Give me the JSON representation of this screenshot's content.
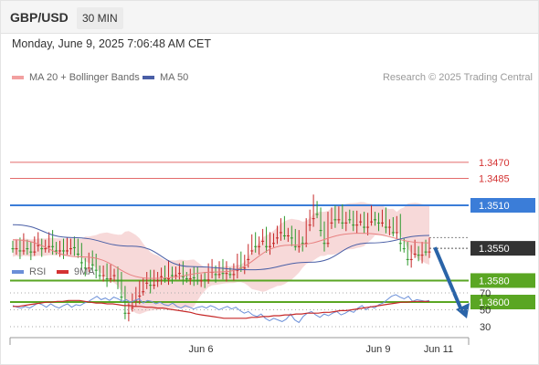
{
  "header": {
    "pair": "GBP/USD",
    "timeframe": "30 MIN"
  },
  "datetime": "Monday, June 9, 2025 7:06:48 AM CET",
  "legend": {
    "ma20_label": "MA 20 + Bollinger Bands",
    "ma50_label": "MA 50",
    "rsi_label": "RSI",
    "ma9_label": "9MA"
  },
  "credit": "Research © 2025 Trading Central",
  "colors": {
    "resistance": "#5aa623",
    "support": "#3b7dd8",
    "extra_support": "#e36a6a",
    "bull": "#2e9a2e",
    "bear": "#c62828",
    "ma20": "#e88080",
    "ma50": "#4a5fa6",
    "bands": "#f6d2d2",
    "arrow": "#2a64a8",
    "rsi": "#6b8fd8",
    "rsi_ma": "#c62828"
  },
  "chart_data": [
    {
      "type": "candlestick",
      "title": "GBP/USD 30 MIN",
      "x_ticks": [
        "Jun 6",
        "Jun 9",
        "Jun 11"
      ],
      "ylim": [
        1.344,
        1.363
      ],
      "current_price": 1.355,
      "levels": [
        {
          "label": "1.3600",
          "value": 1.36,
          "kind": "resistance"
        },
        {
          "label": "1.3580",
          "value": 1.358,
          "kind": "resistance"
        },
        {
          "label": "1.3510",
          "value": 1.351,
          "kind": "support"
        },
        {
          "label": "1.3485",
          "value": 1.3485,
          "kind": "extra_support"
        },
        {
          "label": "1.3470",
          "value": 1.347,
          "kind": "extra_support"
        }
      ],
      "price_label": "1.3550",
      "projection": {
        "from": 1.355,
        "to": 1.36
      },
      "series": [
        {
          "name": "close",
          "values": [
            1.355,
            1.3548,
            1.3552,
            1.3546,
            1.355,
            1.3553,
            1.3547,
            1.3545,
            1.355,
            1.3548,
            1.3543,
            1.3548,
            1.3552,
            1.3549,
            1.3552,
            1.355,
            1.3545,
            1.3549,
            1.3555,
            1.3563,
            1.3568,
            1.356,
            1.3565,
            1.357,
            1.3575,
            1.3572,
            1.3578,
            1.3575,
            1.3573,
            1.358,
            1.3595,
            1.361,
            1.3605,
            1.3598,
            1.3594,
            1.359,
            1.3582,
            1.3578,
            1.3584,
            1.358,
            1.3576,
            1.3574,
            1.3578,
            1.3571,
            1.3575,
            1.3573,
            1.3572,
            1.3576,
            1.3578,
            1.3575,
            1.3577,
            1.358,
            1.3578,
            1.3579,
            1.3572,
            1.357,
            1.3574,
            1.3568,
            1.3573,
            1.3572,
            1.3574,
            1.357,
            1.3563,
            1.3568,
            1.356,
            1.3552,
            1.3545,
            1.3548,
            1.3543,
            1.3538,
            1.3548,
            1.3545,
            1.354,
            1.3535,
            1.353,
            1.3538,
            1.3535,
            1.354,
            1.3548,
            1.3543,
            1.3545,
            1.3528,
            1.3522,
            1.351,
            1.3518,
            1.3533,
            1.3545,
            1.3526,
            1.3516,
            1.3523,
            1.3519,
            1.3526,
            1.352,
            1.3523,
            1.3528,
            1.3525,
            1.3522,
            1.353,
            1.3525,
            1.352,
            1.3523,
            1.3526,
            1.3522,
            1.353,
            1.3527,
            1.3535,
            1.3528,
            1.3545,
            1.355,
            1.356,
            1.3555,
            1.3552,
            1.3556,
            1.355,
            1.3553,
            1.355
          ]
        },
        {
          "name": "MA 20",
          "values": [
            1.3542,
            1.3558,
            1.3578,
            1.3572,
            1.3547,
            1.3536,
            1.3545
          ]
        },
        {
          "name": "MA 50",
          "values": [
            1.3528,
            1.354,
            1.3548,
            1.3567,
            1.357,
            1.3563,
            1.3545,
            1.3538
          ]
        }
      ]
    },
    {
      "type": "line",
      "series": [
        {
          "name": "RSI"
        },
        {
          "name": "9MA"
        }
      ],
      "ylim": [
        20,
        80
      ],
      "y_ticks": [
        "70",
        "50",
        "30"
      ],
      "rsi_values": [
        55,
        53,
        52,
        54,
        52,
        55,
        58,
        56,
        53,
        57,
        54,
        52,
        55,
        57,
        53,
        56,
        55,
        58,
        60,
        63,
        66,
        62,
        64,
        61,
        65,
        63,
        60,
        62,
        59,
        61,
        63,
        58,
        61,
        60,
        57,
        59,
        56,
        55,
        58,
        54,
        52,
        55,
        53,
        51,
        53,
        54,
        52,
        55,
        53,
        50,
        52,
        54,
        51,
        53,
        49,
        46,
        48,
        44,
        42,
        45,
        40,
        37,
        40,
        38,
        36,
        39,
        45,
        38,
        35,
        42,
        46,
        48,
        44,
        41,
        45,
        43,
        46,
        48,
        44,
        46,
        49,
        47,
        52,
        55,
        50,
        54,
        52,
        56,
        58,
        62,
        66,
        68,
        65,
        63,
        66,
        60,
        62,
        61,
        60,
        61
      ],
      "ma_values": [
        54,
        54,
        55,
        56,
        57,
        58,
        59,
        59,
        60,
        60,
        61,
        61,
        61,
        60,
        59,
        58,
        58,
        57,
        57,
        56,
        55,
        55,
        54,
        54,
        53,
        53,
        52,
        52,
        51,
        50,
        49,
        48,
        47,
        45,
        44,
        43,
        42,
        41,
        40,
        40,
        40,
        40,
        40,
        41,
        41,
        42,
        42,
        43,
        43,
        44,
        44,
        45,
        45,
        46,
        46,
        46,
        47,
        47,
        48,
        49,
        49,
        50,
        51,
        52,
        53,
        54,
        55,
        56,
        57,
        58,
        59,
        59,
        60,
        60,
        60,
        60
      ]
    }
  ]
}
